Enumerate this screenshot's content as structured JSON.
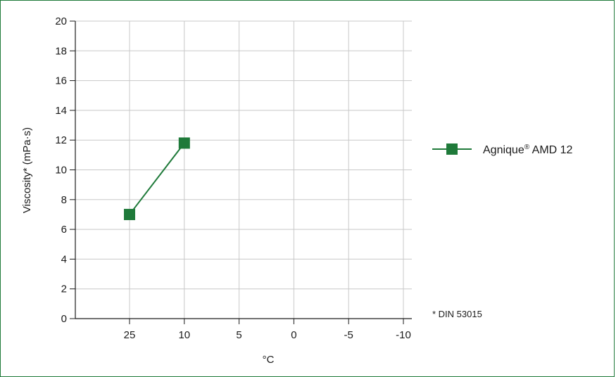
{
  "chart_data": {
    "type": "line",
    "title": "",
    "xlabel": "°C",
    "ylabel": "Viscosity* (mPa·s)",
    "categories": [
      "25",
      "10",
      "5",
      "0",
      "-5",
      "-10"
    ],
    "x_ticks": [
      "25",
      "10",
      "5",
      "0",
      "-5",
      "-10"
    ],
    "y_ticks": [
      "0",
      "2",
      "4",
      "6",
      "8",
      "10",
      "12",
      "14",
      "16",
      "18",
      "20"
    ],
    "ylim": [
      0,
      20
    ],
    "grid": true,
    "legend_position": "right",
    "series": [
      {
        "name": "Agnique® AMD 12",
        "name_base": "Agnique",
        "name_mark": "®",
        "name_rest": " AMD 12",
        "x": [
          "25",
          "10"
        ],
        "values": [
          7.0,
          11.8
        ],
        "color": "#1f7a3a",
        "marker": "square"
      }
    ],
    "annotations": [
      "* DIN 53015"
    ]
  },
  "colors": {
    "series": "#1f7a3a",
    "grid": "#c8c8c8",
    "axis": "#1a1a1a",
    "frame": "#1f7a3a"
  }
}
